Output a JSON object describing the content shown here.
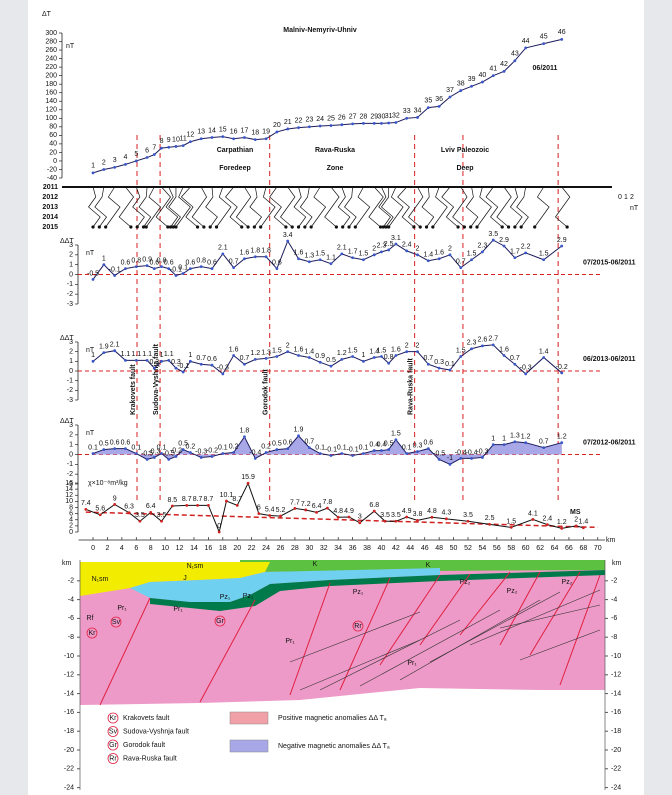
{
  "chart_data": [
    {
      "type": "line",
      "title": "Malniv-Nemyriv-Uhniv",
      "subtitle": "06/2011",
      "y_label": "ΔT",
      "y_unit": "nT",
      "x": [
        0,
        1.5,
        3,
        4.5,
        6,
        7.5,
        8.5,
        9.5,
        10.5,
        11.5,
        12.5,
        13.5,
        15,
        16.5,
        18,
        19.5,
        21,
        22.5,
        24,
        25.5,
        27,
        28.5,
        30,
        31.5,
        33,
        34.5,
        36,
        37.5,
        39,
        40,
        41,
        42,
        43.5,
        45,
        46.5,
        48,
        49.5,
        51,
        52.5,
        54,
        55.5,
        57,
        58.5,
        60,
        62.5,
        65
      ],
      "categories": [
        "1",
        "2",
        "3",
        "4",
        "5",
        "6",
        "7",
        "8",
        "9",
        "10",
        "11",
        "12",
        "13",
        "14",
        "15",
        "16",
        "17",
        "18",
        "19",
        "20",
        "21",
        "22",
        "23",
        "24",
        "25",
        "26",
        "27",
        "28",
        "29",
        "30",
        "31",
        "32",
        "33",
        "34",
        "35",
        "36",
        "37",
        "38",
        "39",
        "40",
        "41",
        "42",
        "43",
        "44",
        "45",
        "46"
      ],
      "values": [
        -28,
        -20,
        -15,
        -8,
        0,
        8,
        15,
        30,
        32,
        34,
        36,
        45,
        52,
        55,
        57,
        52,
        55,
        50,
        52,
        68,
        75,
        78,
        80,
        82,
        83,
        85,
        87,
        88,
        88,
        88,
        89,
        90,
        100,
        102,
        125,
        128,
        150,
        165,
        175,
        185,
        200,
        210,
        235,
        265,
        275,
        285
      ],
      "xlim": [
        -2,
        71
      ],
      "ylim": [
        -40,
        300
      ],
      "yticks": [
        -40,
        -20,
        0,
        20,
        40,
        60,
        80,
        100,
        120,
        140,
        160,
        180,
        200,
        220,
        240,
        260,
        280,
        300
      ],
      "line_color": "#1c1c5c",
      "point_color": "#3a56c8",
      "regions": [
        [
          "Carpathian",
          "Foredeep"
        ],
        [
          "Rava-Ruska",
          "Zone"
        ],
        [
          "Lviv Paleozoic",
          "Deep"
        ]
      ],
      "years": [
        "2011",
        "2012",
        "2013",
        "2014",
        "2015"
      ],
      "scale_labels": [
        "0",
        "1",
        "2"
      ],
      "scale_unit": "nT"
    },
    {
      "type": "line",
      "title": "07/2015-06/2011",
      "y_label": "ΔΔT",
      "y_unit": "nT",
      "x": [
        0,
        1.5,
        3,
        4.5,
        6,
        7.5,
        8.5,
        9.5,
        10.5,
        11.5,
        12.5,
        13.5,
        15,
        16.5,
        18,
        19.5,
        21,
        22.5,
        24,
        25.5,
        27,
        28.5,
        30,
        31.5,
        33,
        34.5,
        36,
        37.5,
        39,
        40,
        41,
        42,
        43.5,
        45,
        46.5,
        48,
        49.5,
        51,
        52.5,
        54,
        55.5,
        57,
        58.5,
        60,
        62.5,
        65
      ],
      "values": [
        -0.5,
        1,
        -0.1,
        0.6,
        0.8,
        0.9,
        0.6,
        0.8,
        0.6,
        -0.1,
        0.1,
        0.6,
        0.8,
        0.6,
        2.1,
        0.7,
        1.6,
        1.8,
        1.8,
        0.6,
        3.4,
        1.6,
        1.3,
        1.5,
        1.1,
        2.1,
        1.7,
        1.5,
        2,
        2.3,
        2.5,
        3.1,
        2.4,
        2,
        1.4,
        1.6,
        2,
        0.7,
        1.5,
        2.3,
        3.5,
        2.9,
        1.7,
        2.2,
        1.5,
        2.9
      ],
      "xlim": [
        -2,
        71
      ],
      "ylim": [
        -3,
        3
      ],
      "yticks": [
        -3,
        -2,
        -1,
        0,
        1,
        2,
        3
      ],
      "zero_line": true,
      "line_color": "#1c1c5c",
      "point_color": "#3a56c8"
    },
    {
      "type": "line",
      "title": "06/2013-06/2011",
      "y_label": "ΔΔT",
      "y_unit": "nT",
      "x": [
        0,
        1.5,
        3,
        4.5,
        6,
        7.5,
        8.5,
        9.5,
        10.5,
        11.5,
        12.5,
        13.5,
        15,
        16.5,
        18,
        19.5,
        21,
        22.5,
        24,
        25.5,
        27,
        28.5,
        30,
        31.5,
        33,
        34.5,
        36,
        37.5,
        39,
        40,
        41,
        42,
        43.5,
        45,
        46.5,
        48,
        49.5,
        51,
        52.5,
        54,
        55.5,
        57,
        58.5,
        60,
        62.5,
        65
      ],
      "values": [
        1,
        1.9,
        2.1,
        1.1,
        1.1,
        1.1,
        0.3,
        1,
        1.1,
        0.3,
        -0.1,
        1,
        0.7,
        0.6,
        -0.3,
        1.6,
        0.7,
        1.2,
        1.3,
        1.5,
        2,
        1.6,
        1.4,
        0.9,
        0.5,
        1.2,
        1.5,
        1,
        1.4,
        1.5,
        0.8,
        1.6,
        2,
        2,
        0.7,
        0.3,
        0.1,
        1.5,
        2.3,
        2.6,
        2.7,
        1.6,
        0.7,
        -0.3,
        1.4,
        -0.2
      ],
      "xlim": [
        -2,
        71
      ],
      "ylim": [
        -3,
        3
      ],
      "yticks": [
        -3,
        -2,
        -1,
        0,
        1,
        2,
        3
      ],
      "zero_line": true,
      "line_color": "#1c1c5c",
      "point_color": "#3a56c8"
    },
    {
      "type": "line",
      "title": "07/2012-06/2011",
      "y_label": "ΔΔT",
      "y_unit": "nT",
      "x": [
        0,
        1.5,
        3,
        4.5,
        6,
        7.5,
        8.5,
        9.5,
        10.5,
        11.5,
        12.5,
        13.5,
        15,
        16.5,
        18,
        19.5,
        21,
        22.5,
        24,
        25.5,
        27,
        28.5,
        30,
        31.5,
        33,
        34.5,
        36,
        37.5,
        39,
        40,
        41,
        42,
        43.5,
        45,
        46.5,
        48,
        49.5,
        51,
        52.5,
        54,
        55.5,
        57,
        58.5,
        60,
        62.5,
        65
      ],
      "values": [
        0.1,
        0.5,
        0.6,
        0.6,
        0.1,
        -0.5,
        -0.3,
        0.1,
        -0.5,
        -0.2,
        0.5,
        0.2,
        -0.3,
        -0.2,
        0.1,
        0.2,
        1.8,
        -0.4,
        0.2,
        0.5,
        0.6,
        1.9,
        0.7,
        0.1,
        -0.1,
        0.1,
        -0.1,
        0.1,
        0.4,
        0.4,
        0.5,
        1.5,
        0.1,
        0.3,
        0.6,
        -0.5,
        -1,
        -0.4,
        -0.4,
        -0.3,
        1,
        1,
        1.3,
        1.2,
        0.7,
        1.2
      ],
      "xlim": [
        -2,
        71
      ],
      "ylim": [
        -3,
        3
      ],
      "yticks": [
        -3,
        -2,
        -1,
        0,
        1,
        2,
        3
      ],
      "zero_line": true,
      "fill": true,
      "positive_color": "#f2a0a8",
      "negative_color": "#a8a8e8",
      "line_color": "#1c1c5c",
      "point_color": "#3a56c8"
    },
    {
      "type": "line",
      "title": "MS",
      "y_label": "χ×10⁻⁸m³/kg",
      "x_label": "km",
      "x": [
        -1,
        1,
        3,
        5,
        6.5,
        8,
        9.5,
        11,
        13,
        14.5,
        16,
        17.5,
        18.5,
        20,
        21.5,
        23,
        24.5,
        26,
        28,
        29.5,
        31,
        32.5,
        34,
        35.5,
        37,
        39,
        40.5,
        42,
        43.5,
        45,
        47,
        49,
        52,
        55,
        58,
        61,
        63,
        65,
        67,
        68
      ],
      "values": [
        7.4,
        5.6,
        9,
        6.3,
        3.5,
        6.4,
        3.5,
        8.5,
        8.7,
        8.7,
        8.7,
        0,
        10.1,
        8.7,
        15.9,
        6,
        5.4,
        5.2,
        7.7,
        7.2,
        6.4,
        7.8,
        4.8,
        4.9,
        3,
        6.8,
        3.5,
        3.5,
        4.9,
        3.8,
        4.8,
        4.3,
        3.5,
        2.5,
        1.5,
        4.1,
        2.4,
        1.2,
        2,
        1.4
      ],
      "xlim": [
        -2,
        71
      ],
      "ylim": [
        0,
        16
      ],
      "yticks": [
        0,
        2,
        4,
        6,
        8,
        10,
        12,
        14,
        16
      ],
      "xticks": [
        0,
        2,
        4,
        6,
        8,
        10,
        12,
        14,
        16,
        18,
        20,
        22,
        24,
        26,
        28,
        30,
        32,
        34,
        36,
        38,
        40,
        42,
        44,
        46,
        48,
        50,
        52,
        54,
        56,
        58,
        60,
        62,
        64,
        66,
        68,
        70
      ],
      "trend": {
        "x": [
          -1,
          70
        ],
        "values": [
          6.5,
          1.5
        ]
      },
      "line_color": "#111111",
      "point_color": "#d02020",
      "trend_color": "#d02020"
    }
  ],
  "faults": {
    "names": [
      "Krakovets fault",
      "Sudova-Vyshnja fault",
      "Gorodok fault",
      "Rava-Ruska fault"
    ],
    "km": [
      6.1,
      9.3,
      24.5,
      44.6
    ],
    "marks": [
      "Kr",
      "Sv",
      "Gr",
      "Rr"
    ]
  },
  "fault_lines_km": [
    6.1,
    9.3,
    24.5,
    44.6,
    51.3,
    64.5
  ],
  "section": {
    "unit": "km",
    "depth_ticks": [
      -2,
      -4,
      -6,
      -8,
      -10,
      -12,
      -14,
      -16,
      -18,
      -20,
      -22,
      -24
    ],
    "labels": [
      "N₁sm",
      "N₁sm",
      "J",
      "Pr₁",
      "Pr₁",
      "Pz₁",
      "Rf",
      "Pz₁",
      "Pz₂",
      "Pz₂",
      "Pz₂",
      "Pr₁",
      "Pr₁",
      "K",
      "K",
      "Pz₁"
    ],
    "legend": [
      "Positive magnetic anomalies ΔΔ Tₐ",
      "Negative magnetic anomalies ΔΔ Tₐ"
    ]
  }
}
